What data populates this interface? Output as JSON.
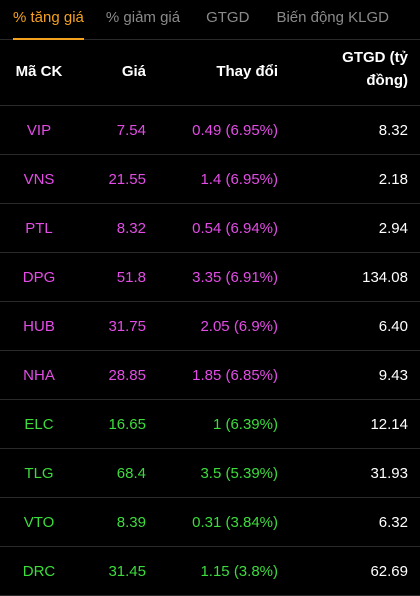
{
  "tabs": [
    {
      "label": "% tăng giá",
      "active": true
    },
    {
      "label": "% giảm giá",
      "active": false
    },
    {
      "label": "GTGD",
      "active": false
    },
    {
      "label": "Biến động KLGD",
      "active": false
    }
  ],
  "header": {
    "code": "Mã CK",
    "price": "Giá",
    "change": "Thay đổi",
    "value_line1": "GTGD (tỷ",
    "value_line2": "đồng)"
  },
  "colors": {
    "ceiling": "#e34de6",
    "up": "#3ddc3d",
    "active_tab": "#f4a21f"
  },
  "rows": [
    {
      "code": "VIP",
      "price": "7.54",
      "change": "0.49 (6.95%)",
      "value": "8.32",
      "status": "ceiling"
    },
    {
      "code": "VNS",
      "price": "21.55",
      "change": "1.4 (6.95%)",
      "value": "2.18",
      "status": "ceiling"
    },
    {
      "code": "PTL",
      "price": "8.32",
      "change": "0.54 (6.94%)",
      "value": "2.94",
      "status": "ceiling"
    },
    {
      "code": "DPG",
      "price": "51.8",
      "change": "3.35 (6.91%)",
      "value": "134.08",
      "status": "ceiling"
    },
    {
      "code": "HUB",
      "price": "31.75",
      "change": "2.05 (6.9%)",
      "value": "6.40",
      "status": "ceiling"
    },
    {
      "code": "NHA",
      "price": "28.85",
      "change": "1.85 (6.85%)",
      "value": "9.43",
      "status": "ceiling"
    },
    {
      "code": "ELC",
      "price": "16.65",
      "change": "1 (6.39%)",
      "value": "12.14",
      "status": "up"
    },
    {
      "code": "TLG",
      "price": "68.4",
      "change": "3.5 (5.39%)",
      "value": "31.93",
      "status": "up"
    },
    {
      "code": "VTO",
      "price": "8.39",
      "change": "0.31 (3.84%)",
      "value": "6.32",
      "status": "up"
    },
    {
      "code": "DRC",
      "price": "31.45",
      "change": "1.15 (3.8%)",
      "value": "62.69",
      "status": "up"
    }
  ]
}
